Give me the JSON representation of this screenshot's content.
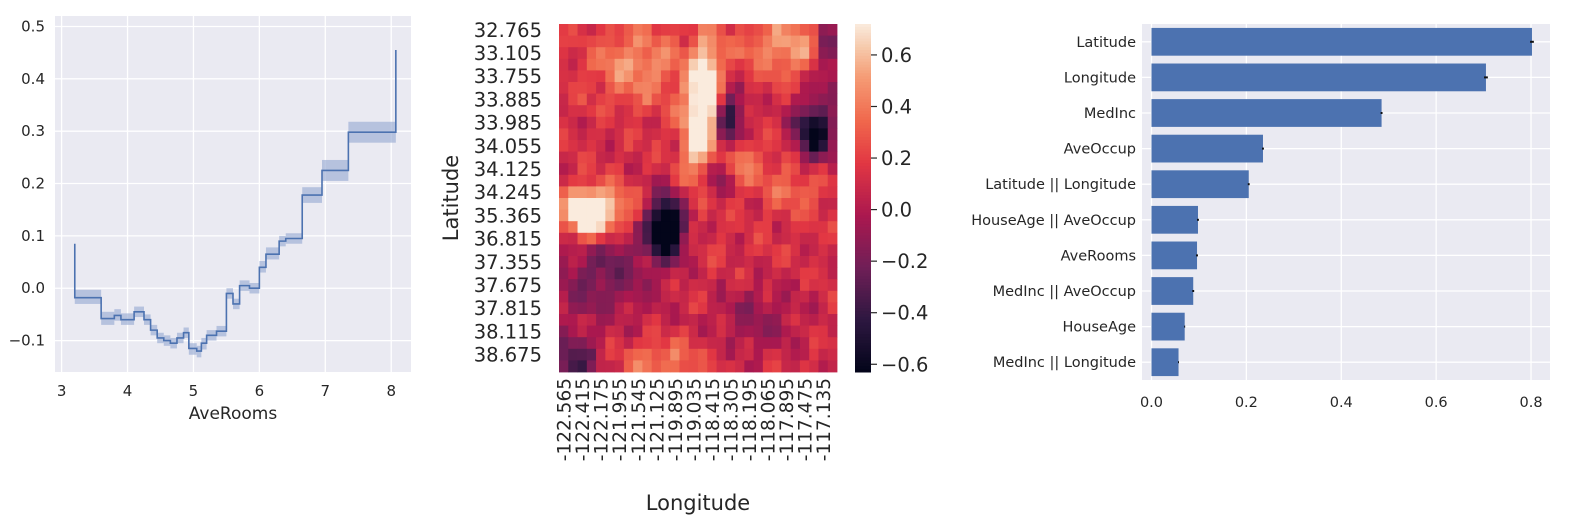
{
  "chart_data": [
    {
      "type": "line",
      "xlabel": "AveRooms",
      "ylabel": "",
      "xlim": [
        2.9,
        8.3
      ],
      "ylim": [
        -0.16,
        0.52
      ],
      "xticks": [
        3,
        4,
        5,
        6,
        7,
        8
      ],
      "yticks": [
        -0.1,
        0.0,
        0.1,
        0.2,
        0.3,
        0.4,
        0.5
      ],
      "ytick_labels": [
        "−0.1",
        "0.0",
        "0.1",
        "0.2",
        "0.3",
        "0.4",
        "0.5"
      ],
      "grid": true,
      "line_color": "#4c72b0",
      "band_color": "#9fb0d6",
      "steps": [
        {
          "x0": 3.2,
          "x1": 3.6,
          "y": -0.018,
          "lo": -0.03,
          "hi": -0.003
        },
        {
          "x0": 3.6,
          "x1": 3.8,
          "y": -0.058,
          "lo": -0.07,
          "hi": -0.045
        },
        {
          "x0": 3.8,
          "x1": 3.9,
          "y": -0.052,
          "lo": -0.062,
          "hi": -0.04
        },
        {
          "x0": 3.9,
          "x1": 4.1,
          "y": -0.06,
          "lo": -0.07,
          "hi": -0.048
        },
        {
          "x0": 4.1,
          "x1": 4.25,
          "y": -0.045,
          "lo": -0.055,
          "hi": -0.035
        },
        {
          "x0": 4.25,
          "x1": 4.35,
          "y": -0.06,
          "lo": -0.07,
          "hi": -0.05
        },
        {
          "x0": 4.35,
          "x1": 4.45,
          "y": -0.08,
          "lo": -0.09,
          "hi": -0.07
        },
        {
          "x0": 4.45,
          "x1": 4.55,
          "y": -0.095,
          "lo": -0.105,
          "hi": -0.085
        },
        {
          "x0": 4.55,
          "x1": 4.65,
          "y": -0.1,
          "lo": -0.11,
          "hi": -0.09
        },
        {
          "x0": 4.65,
          "x1": 4.75,
          "y": -0.105,
          "lo": -0.115,
          "hi": -0.095
        },
        {
          "x0": 4.75,
          "x1": 4.85,
          "y": -0.095,
          "lo": -0.105,
          "hi": -0.085
        },
        {
          "x0": 4.85,
          "x1": 4.93,
          "y": -0.085,
          "lo": -0.095,
          "hi": -0.075
        },
        {
          "x0": 4.93,
          "x1": 5.05,
          "y": -0.115,
          "lo": -0.127,
          "hi": -0.105
        },
        {
          "x0": 5.05,
          "x1": 5.12,
          "y": -0.12,
          "lo": -0.132,
          "hi": -0.11
        },
        {
          "x0": 5.12,
          "x1": 5.2,
          "y": -0.105,
          "lo": -0.117,
          "hi": -0.095
        },
        {
          "x0": 5.2,
          "x1": 5.35,
          "y": -0.09,
          "lo": -0.1,
          "hi": -0.08
        },
        {
          "x0": 5.35,
          "x1": 5.5,
          "y": -0.082,
          "lo": -0.092,
          "hi": -0.072
        },
        {
          "x0": 5.5,
          "x1": 5.6,
          "y": -0.01,
          "lo": -0.02,
          "hi": 0.0
        },
        {
          "x0": 5.6,
          "x1": 5.7,
          "y": -0.03,
          "lo": -0.04,
          "hi": -0.02
        },
        {
          "x0": 5.7,
          "x1": 5.85,
          "y": 0.005,
          "lo": -0.005,
          "hi": 0.015
        },
        {
          "x0": 5.85,
          "x1": 6.0,
          "y": 0.0,
          "lo": -0.01,
          "hi": 0.01
        },
        {
          "x0": 6.0,
          "x1": 6.1,
          "y": 0.04,
          "lo": 0.03,
          "hi": 0.052
        },
        {
          "x0": 6.1,
          "x1": 6.3,
          "y": 0.065,
          "lo": 0.055,
          "hi": 0.078
        },
        {
          "x0": 6.3,
          "x1": 6.4,
          "y": 0.09,
          "lo": 0.08,
          "hi": 0.1
        },
        {
          "x0": 6.4,
          "x1": 6.65,
          "y": 0.095,
          "lo": 0.085,
          "hi": 0.105
        },
        {
          "x0": 6.65,
          "x1": 6.95,
          "y": 0.178,
          "lo": 0.163,
          "hi": 0.193
        },
        {
          "x0": 6.95,
          "x1": 7.35,
          "y": 0.225,
          "lo": 0.205,
          "hi": 0.245
        },
        {
          "x0": 7.35,
          "x1": 8.07,
          "y": 0.298,
          "lo": 0.278,
          "hi": 0.318
        }
      ],
      "start": {
        "x": 3.2,
        "y": 0.085
      },
      "end": {
        "x": 8.07,
        "y": 0.455
      }
    },
    {
      "type": "heatmap",
      "xlabel": "Longitude",
      "ylabel": "Latitude",
      "x_tick_labels": [
        "-122.565",
        "-122.415",
        "-122.175",
        "-121.955",
        "-121.545",
        "-121.125",
        "-119.895",
        "-119.035",
        "-118.415",
        "-118.305",
        "-118.195",
        "-118.065",
        "-117.895",
        "-117.475",
        "-117.135"
      ],
      "y_tick_labels": [
        "32.765",
        "33.105",
        "33.755",
        "33.885",
        "33.985",
        "34.055",
        "34.125",
        "34.245",
        "35.365",
        "36.815",
        "37.355",
        "37.675",
        "37.815",
        "38.115",
        "38.675"
      ],
      "grid_size": [
        30,
        30
      ],
      "colorbar": {
        "vmin": -0.63,
        "vmax": 0.72,
        "ticks": [
          0.6,
          0.4,
          0.2,
          0.0,
          -0.2,
          -0.4,
          -0.6
        ],
        "tick_labels": [
          "0.6",
          "0.4",
          "0.2",
          "0.0",
          "−0.2",
          "−0.4",
          "−0.6"
        ],
        "colormap": "rocket"
      },
      "values_note_free": true,
      "hotspots": [
        {
          "cx": 15,
          "cy": 9,
          "sx": 1.4,
          "sy": 3.2,
          "v": 0.9
        },
        {
          "cx": 15.5,
          "cy": 4,
          "sx": 1.2,
          "sy": 2.6,
          "v": 0.55
        },
        {
          "cx": 2.5,
          "cy": 16,
          "sx": 1.8,
          "sy": 1.6,
          "v": 0.8
        },
        {
          "cx": 5,
          "cy": 15.5,
          "sx": 2.5,
          "sy": 1.2,
          "v": 0.35
        },
        {
          "cx": 8,
          "cy": 3,
          "sx": 3.5,
          "sy": 2.5,
          "v": 0.35
        },
        {
          "cx": 24,
          "cy": 1.5,
          "sx": 3.5,
          "sy": 1.8,
          "v": 0.4
        },
        {
          "cx": 19,
          "cy": 11,
          "sx": 1.2,
          "sy": 1.5,
          "v": 0.4
        },
        {
          "cx": 10.5,
          "cy": 28.5,
          "sx": 3.0,
          "sy": 1.2,
          "v": 0.3
        },
        {
          "cx": 25,
          "cy": 13,
          "sx": 2.5,
          "sy": 2.0,
          "v": 0.25
        },
        {
          "cx": 11,
          "cy": 17,
          "sx": 1.4,
          "sy": 1.8,
          "v": -1.1
        },
        {
          "cx": 17.5,
          "cy": 8,
          "sx": 1.3,
          "sy": 2.0,
          "v": -0.75
        },
        {
          "cx": 27,
          "cy": 9,
          "sx": 1.6,
          "sy": 2.0,
          "v": -0.75
        },
        {
          "cx": 16,
          "cy": 12.5,
          "sx": 1.2,
          "sy": 1.4,
          "v": -0.5
        },
        {
          "cx": 4,
          "cy": 21,
          "sx": 4.0,
          "sy": 3.0,
          "v": -0.35
        },
        {
          "cx": 28.5,
          "cy": 2,
          "sx": 1.0,
          "sy": 2.0,
          "v": -0.5
        },
        {
          "cx": 21,
          "cy": 25,
          "sx": 3.0,
          "sy": 2.0,
          "v": -0.25
        },
        {
          "cx": 1,
          "cy": 29,
          "sx": 1.8,
          "sy": 1.8,
          "v": -0.5
        }
      ]
    },
    {
      "type": "bar",
      "orientation": "horizontal",
      "categories": [
        "Latitude",
        "Longitude",
        "MedInc",
        "AveOccup",
        "Latitude || Longitude",
        "HouseAge || AveOccup",
        "AveRooms",
        "MedInc || AveOccup",
        "HouseAge",
        "MedInc || Longitude"
      ],
      "values": [
        0.802,
        0.705,
        0.485,
        0.235,
        0.205,
        0.098,
        0.096,
        0.088,
        0.07,
        0.057
      ],
      "errors": [
        0.004,
        0.004,
        0.002,
        0.002,
        0.002,
        0.002,
        0.002,
        0.002,
        0.001,
        0.001
      ],
      "xlim": [
        -0.02,
        0.84
      ],
      "xticks": [
        0.0,
        0.2,
        0.4,
        0.6,
        0.8
      ],
      "xtick_labels": [
        "0.0",
        "0.2",
        "0.4",
        "0.6",
        "0.8"
      ],
      "bar_color": "#4c72b0",
      "grid": true,
      "xlabel": "",
      "ylabel": ""
    }
  ]
}
